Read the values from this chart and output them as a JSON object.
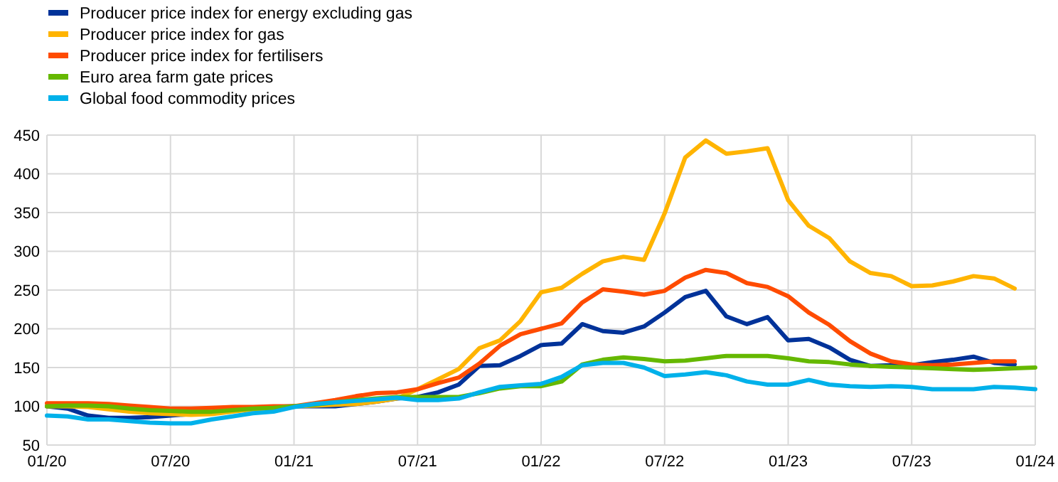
{
  "chart_data": {
    "type": "line",
    "categories": [
      "01/20",
      null,
      null,
      null,
      null,
      null,
      "07/20",
      null,
      null,
      null,
      null,
      null,
      "01/21",
      null,
      null,
      null,
      null,
      null,
      "07/21",
      null,
      null,
      null,
      null,
      null,
      "01/22",
      null,
      null,
      null,
      null,
      null,
      "07/22",
      null,
      null,
      null,
      null,
      null,
      "01/23",
      null,
      null,
      null,
      null,
      null,
      "07/23",
      null,
      null,
      null,
      null,
      null,
      "01/24"
    ],
    "series": [
      {
        "name": "Producer price index for energy excluding gas",
        "color": "#003299",
        "values": [
          100,
          97,
          88,
          85,
          85,
          86,
          88,
          90,
          92,
          96,
          98,
          99,
          100,
          100,
          100,
          103,
          106,
          110,
          112,
          118,
          128,
          152,
          153,
          165,
          179,
          181,
          206,
          197,
          195,
          203,
          221,
          241,
          249,
          216,
          206,
          215,
          185,
          187,
          176,
          160,
          152,
          153,
          153,
          157,
          160,
          164,
          156,
          154,
          null
        ]
      },
      {
        "name": "Producer price index for gas",
        "color": "#ffb400",
        "values": [
          100,
          100,
          99,
          96,
          93,
          91,
          90,
          89,
          90,
          93,
          96,
          98,
          100,
          101,
          102,
          103,
          106,
          110,
          122,
          135,
          148,
          175,
          185,
          210,
          247,
          253,
          271,
          287,
          293,
          289,
          349,
          421,
          443,
          426,
          429,
          433,
          366,
          333,
          317,
          287,
          272,
          268,
          255,
          256,
          261,
          268,
          265,
          252,
          null
        ]
      },
      {
        "name": "Producer price index for fertilisers",
        "color": "#ff4b00",
        "values": [
          104,
          104,
          104,
          103,
          101,
          99,
          97,
          97,
          98,
          99,
          99,
          100,
          100,
          104,
          108,
          113,
          117,
          118,
          122,
          130,
          137,
          155,
          178,
          193,
          200,
          207,
          234,
          251,
          248,
          244,
          249,
          266,
          276,
          272,
          259,
          254,
          242,
          221,
          205,
          184,
          168,
          158,
          154,
          153,
          154,
          156,
          158,
          158,
          null
        ]
      },
      {
        "name": "Euro area farm gate prices",
        "color": "#65b800",
        "values": [
          100,
          101,
          101,
          100,
          97,
          95,
          94,
          93,
          93,
          95,
          97,
          98,
          100,
          102,
          105,
          108,
          110,
          112,
          112,
          112,
          112,
          117,
          123,
          126,
          126,
          132,
          154,
          160,
          163,
          161,
          158,
          159,
          162,
          165,
          165,
          165,
          162,
          158,
          157,
          154,
          152,
          151,
          150,
          149,
          148,
          147,
          148,
          149,
          150
        ]
      },
      {
        "name": "Global food commodity prices",
        "color": "#00b1ea",
        "values": [
          88,
          87,
          83,
          83,
          81,
          79,
          78,
          78,
          83,
          87,
          91,
          93,
          99,
          103,
          105,
          107,
          109,
          111,
          108,
          108,
          110,
          118,
          125,
          127,
          129,
          138,
          153,
          156,
          156,
          150,
          139,
          141,
          144,
          140,
          132,
          128,
          128,
          134,
          128,
          126,
          125,
          126,
          125,
          122,
          122,
          122,
          125,
          124,
          122
        ]
      }
    ],
    "ylim": [
      50,
      450
    ],
    "yticks": [
      50,
      100,
      150,
      200,
      250,
      300,
      350,
      400,
      450
    ],
    "grid": true,
    "legend": "top left"
  }
}
